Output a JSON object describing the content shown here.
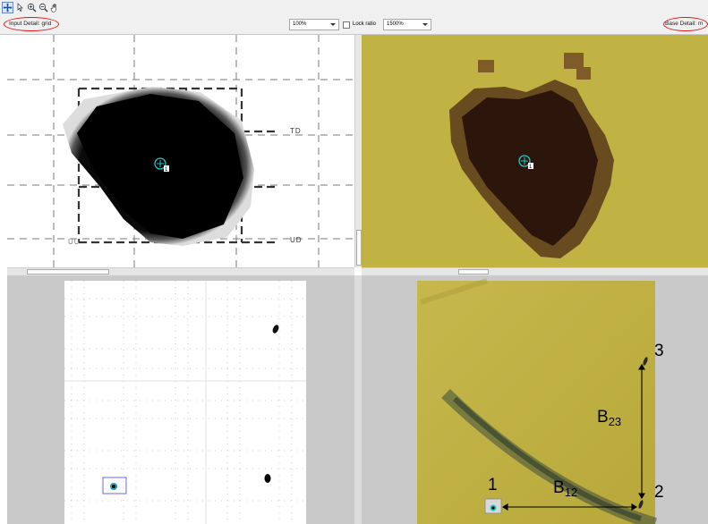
{
  "toolbar": {
    "tools": [
      "pan-select-tool-icon",
      "pointer-tool-icon",
      "zoom-in-icon",
      "zoom-out-icon",
      "hand-tool-icon"
    ]
  },
  "options": {
    "input_detail_label": "Input Detail: grid",
    "base_detail_label": "Base Detail: m",
    "zoom_value": "100%",
    "lock_ratio_label": "Lock ratio",
    "lock_zoom_value": "1500%"
  },
  "input_view": {
    "grid_labels": {
      "right_top": "TD",
      "right_bottom": "UD",
      "left_bottom": "UU"
    },
    "tie_point_id": "1"
  },
  "base_view": {
    "tie_point_id": "1"
  },
  "annotations": {
    "point_1": "1",
    "point_2": "2",
    "point_3": "3",
    "b12": {
      "letter": "B",
      "sub": "12"
    },
    "b23": {
      "letter": "B",
      "sub": "23"
    }
  },
  "colors": {
    "base_image": "#c0b040",
    "tie_point": "#20c8c8",
    "oval_highlight": "#e01414",
    "link_box": "#6a6ae0"
  }
}
